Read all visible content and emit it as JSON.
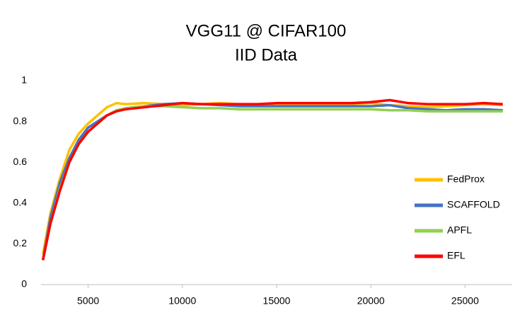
{
  "chart_data": {
    "type": "line",
    "title": "VGG11 @ CIFAR100",
    "subtitle": "IID Data",
    "x": [
      2600,
      3000,
      3500,
      4000,
      4500,
      5000,
      5500,
      6000,
      6500,
      7000,
      8000,
      9000,
      10000,
      11000,
      12000,
      13000,
      14000,
      15000,
      16000,
      17000,
      18000,
      19000,
      20000,
      21000,
      22000,
      23000,
      24000,
      25000,
      26000,
      27000
    ],
    "series": [
      {
        "name": "FedProx",
        "color": "#ffc000",
        "values": [
          0.15,
          0.35,
          0.52,
          0.66,
          0.74,
          0.79,
          0.83,
          0.87,
          0.89,
          0.885,
          0.89,
          0.885,
          0.88,
          0.885,
          0.89,
          0.885,
          0.885,
          0.88,
          0.885,
          0.885,
          0.88,
          0.885,
          0.89,
          0.88,
          0.875,
          0.87,
          0.875,
          0.88,
          0.885,
          0.88
        ]
      },
      {
        "name": "SCAFFOLD",
        "color": "#4472c4",
        "values": [
          0.12,
          0.33,
          0.5,
          0.62,
          0.71,
          0.77,
          0.8,
          0.83,
          0.85,
          0.865,
          0.875,
          0.885,
          0.89,
          0.885,
          0.88,
          0.875,
          0.875,
          0.875,
          0.875,
          0.875,
          0.875,
          0.875,
          0.875,
          0.88,
          0.865,
          0.86,
          0.855,
          0.86,
          0.86,
          0.855
        ]
      },
      {
        "name": "APFL",
        "color": "#92d050",
        "values": [
          0.12,
          0.3,
          0.47,
          0.6,
          0.69,
          0.75,
          0.79,
          0.83,
          0.855,
          0.865,
          0.875,
          0.875,
          0.87,
          0.865,
          0.865,
          0.86,
          0.86,
          0.86,
          0.86,
          0.86,
          0.86,
          0.86,
          0.86,
          0.855,
          0.855,
          0.85,
          0.85,
          0.85,
          0.85,
          0.85
        ]
      },
      {
        "name": "EFL",
        "color": "#ff0000",
        "values": [
          0.12,
          0.3,
          0.46,
          0.6,
          0.69,
          0.75,
          0.79,
          0.83,
          0.85,
          0.86,
          0.87,
          0.88,
          0.89,
          0.885,
          0.885,
          0.885,
          0.885,
          0.89,
          0.89,
          0.89,
          0.89,
          0.89,
          0.895,
          0.905,
          0.89,
          0.885,
          0.885,
          0.885,
          0.89,
          0.885
        ]
      }
    ],
    "xlim": [
      2500,
      27500
    ],
    "xticks": [
      5000,
      10000,
      15000,
      20000,
      25000
    ],
    "ylim": [
      0,
      1
    ],
    "yticks": [
      0,
      0.2,
      0.4,
      0.6,
      0.8,
      1
    ],
    "legend": "right"
  }
}
